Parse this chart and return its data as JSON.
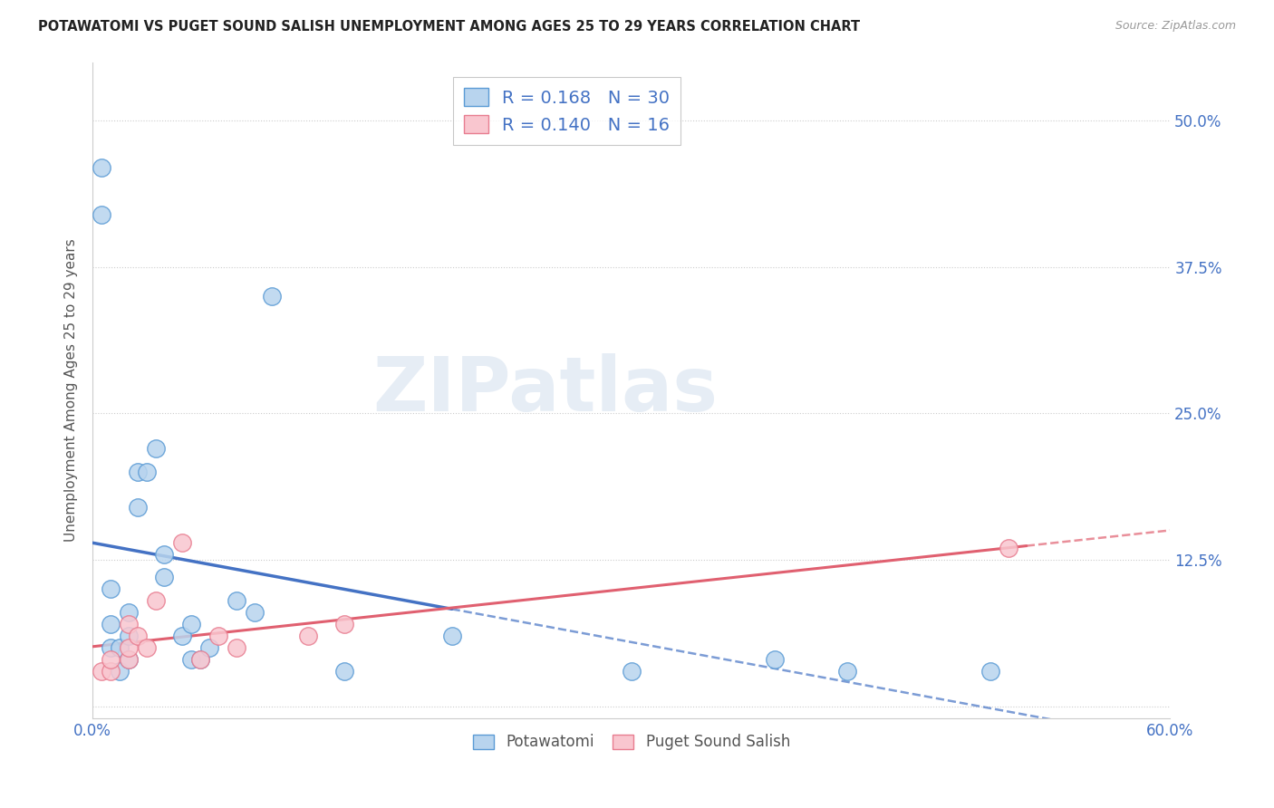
{
  "title": "POTAWATOMI VS PUGET SOUND SALISH UNEMPLOYMENT AMONG AGES 25 TO 29 YEARS CORRELATION CHART",
  "source": "Source: ZipAtlas.com",
  "ylabel": "Unemployment Among Ages 25 to 29 years",
  "xmin": 0.0,
  "xmax": 0.6,
  "ymin": -0.01,
  "ymax": 0.55,
  "xticks": [
    0.0,
    0.1,
    0.2,
    0.3,
    0.4,
    0.5,
    0.6
  ],
  "ytick_positions": [
    0.0,
    0.125,
    0.25,
    0.375,
    0.5
  ],
  "ytick_labels": [
    "",
    "12.5%",
    "25.0%",
    "37.5%",
    "50.0%"
  ],
  "r_blue": 0.168,
  "n_blue": 30,
  "r_pink": 0.14,
  "n_pink": 16,
  "blue_fill": "#b8d4ee",
  "blue_edge": "#5b9bd5",
  "pink_fill": "#f9c6cf",
  "pink_edge": "#e87d90",
  "blue_line": "#4472c4",
  "pink_line": "#e06070",
  "watermark": "ZIPatlas",
  "potawatomi_x": [
    0.005,
    0.005,
    0.01,
    0.01,
    0.01,
    0.015,
    0.015,
    0.02,
    0.02,
    0.02,
    0.025,
    0.025,
    0.03,
    0.035,
    0.04,
    0.04,
    0.05,
    0.055,
    0.055,
    0.06,
    0.065,
    0.08,
    0.09,
    0.1,
    0.14,
    0.2,
    0.3,
    0.38,
    0.42,
    0.5
  ],
  "potawatomi_y": [
    0.46,
    0.42,
    0.05,
    0.07,
    0.1,
    0.03,
    0.05,
    0.04,
    0.06,
    0.08,
    0.17,
    0.2,
    0.2,
    0.22,
    0.11,
    0.13,
    0.06,
    0.04,
    0.07,
    0.04,
    0.05,
    0.09,
    0.08,
    0.35,
    0.03,
    0.06,
    0.03,
    0.04,
    0.03,
    0.03
  ],
  "puget_x": [
    0.005,
    0.01,
    0.01,
    0.02,
    0.02,
    0.02,
    0.025,
    0.03,
    0.035,
    0.05,
    0.06,
    0.07,
    0.08,
    0.12,
    0.14,
    0.51
  ],
  "puget_y": [
    0.03,
    0.03,
    0.04,
    0.04,
    0.05,
    0.07,
    0.06,
    0.05,
    0.09,
    0.14,
    0.04,
    0.06,
    0.05,
    0.06,
    0.07,
    0.135
  ],
  "legend_label_blue": "Potawatomi",
  "legend_label_pink": "Puget Sound Salish"
}
